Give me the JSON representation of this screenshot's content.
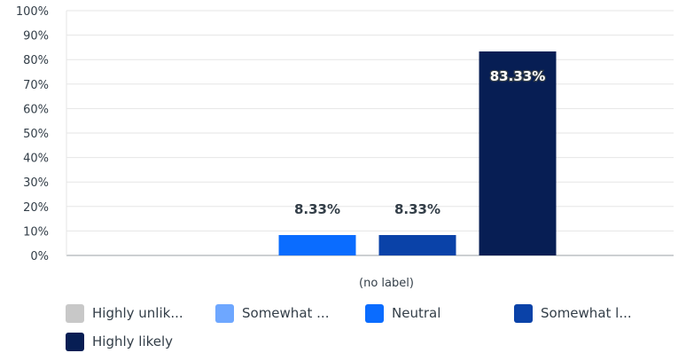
{
  "chart_data": {
    "type": "bar",
    "categories": [
      "(no label)"
    ],
    "series": [
      {
        "name": "Highly unlik...",
        "color": "#c8c8c8",
        "values": [
          0
        ]
      },
      {
        "name": "Somewhat ...",
        "color": "#6ea7ff",
        "values": [
          0
        ]
      },
      {
        "name": "Neutral",
        "color": "#0a6cff",
        "values": [
          8.33
        ]
      },
      {
        "name": "Somewhat l...",
        "color": "#0a42a8",
        "values": [
          8.33
        ]
      },
      {
        "name": "Highly likely",
        "color": "#071e54",
        "values": [
          83.33
        ]
      }
    ],
    "data_labels": [
      "",
      "",
      "8.33%",
      "8.33%",
      "83.33%"
    ],
    "yticks": [
      "0%",
      "10%",
      "20%",
      "30%",
      "40%",
      "50%",
      "60%",
      "70%",
      "80%",
      "90%",
      "100%"
    ],
    "ylim": [
      0,
      100
    ],
    "grid": true,
    "legend": "bottom"
  }
}
